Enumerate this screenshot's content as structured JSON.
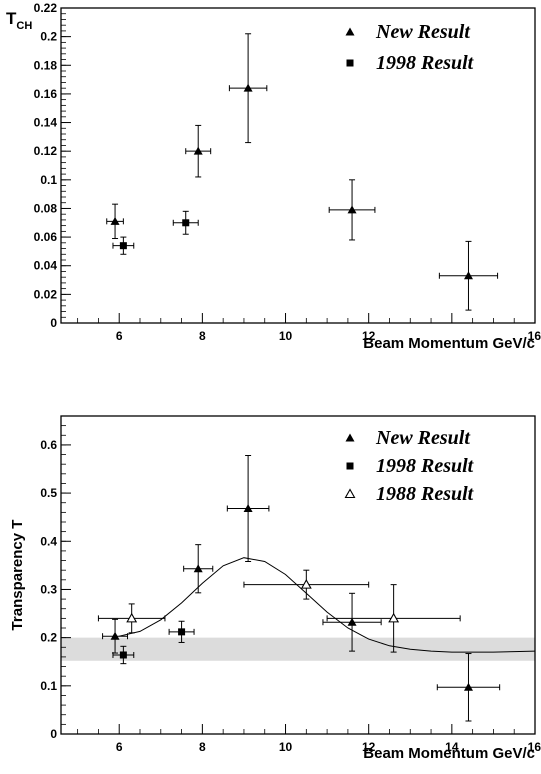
{
  "chart_data": [
    {
      "type": "scatter",
      "title": "",
      "xlabel": "Beam Momentum GeV/c",
      "ylabel_main": "T",
      "ylabel_sub": "CH",
      "xlim": [
        4.6,
        16
      ],
      "ylim": [
        0,
        0.22
      ],
      "x_ticks": [
        "6",
        "8",
        "10",
        "12",
        "16"
      ],
      "y_ticks": [
        "0",
        "0.02",
        "0.04",
        "0.06",
        "0.08",
        "0.1",
        "0.12",
        "0.14",
        "0.16",
        "0.18",
        "0.2",
        "0.22"
      ],
      "legend_placement": "top-right",
      "series": [
        {
          "name": "New Result",
          "marker": "triangle-filled",
          "points": [
            {
              "x": 5.9,
              "y": 0.071,
              "xerr": 0.2,
              "yerr": 0.012
            },
            {
              "x": 7.9,
              "y": 0.12,
              "xerr": 0.3,
              "yerr": 0.018
            },
            {
              "x": 9.1,
              "y": 0.164,
              "xerr": 0.45,
              "yerr": 0.038
            },
            {
              "x": 11.6,
              "y": 0.079,
              "xerr": 0.55,
              "yerr": 0.021
            },
            {
              "x": 14.4,
              "y": 0.033,
              "xerr": 0.7,
              "yerr": 0.024
            }
          ]
        },
        {
          "name": "1998 Result",
          "marker": "square-filled",
          "points": [
            {
              "x": 6.1,
              "y": 0.054,
              "xerr": 0.25,
              "yerr": 0.006
            },
            {
              "x": 7.6,
              "y": 0.07,
              "xerr": 0.3,
              "yerr": 0.008
            }
          ]
        }
      ]
    },
    {
      "type": "scatter",
      "title": "",
      "xlabel": "Beam Momentum GeV/c",
      "ylabel": "Transparency T",
      "xlim": [
        4.6,
        16
      ],
      "ylim": [
        0,
        0.66
      ],
      "x_ticks": [
        "6",
        "8",
        "10",
        "12",
        "14",
        "16"
      ],
      "y_ticks": [
        "0",
        "0.1",
        "0.2",
        "0.3",
        "0.4",
        "0.5",
        "0.6"
      ],
      "legend_placement": "top-right",
      "band": {
        "y_low": 0.152,
        "y_high": 0.2,
        "color": "#dcdcdc"
      },
      "curve": [
        [
          6.0,
          0.203
        ],
        [
          6.5,
          0.213
        ],
        [
          7.0,
          0.237
        ],
        [
          7.5,
          0.272
        ],
        [
          8.0,
          0.313
        ],
        [
          8.5,
          0.349
        ],
        [
          9.0,
          0.366
        ],
        [
          9.5,
          0.358
        ],
        [
          10.0,
          0.331
        ],
        [
          10.5,
          0.292
        ],
        [
          11.0,
          0.253
        ],
        [
          11.5,
          0.22
        ],
        [
          12.0,
          0.197
        ],
        [
          12.5,
          0.183
        ],
        [
          13.0,
          0.176
        ],
        [
          13.5,
          0.172
        ],
        [
          14.0,
          0.17
        ],
        [
          14.5,
          0.17
        ],
        [
          15.0,
          0.17
        ],
        [
          15.5,
          0.171
        ],
        [
          16.0,
          0.172
        ]
      ],
      "series": [
        {
          "name": "New Result",
          "marker": "triangle-filled",
          "points": [
            {
              "x": 5.9,
              "y": 0.203,
              "xerr": 0.3,
              "yerr": 0.035
            },
            {
              "x": 7.9,
              "y": 0.343,
              "xerr": 0.35,
              "yerr": 0.05
            },
            {
              "x": 9.1,
              "y": 0.468,
              "xerr": 0.5,
              "yerr": 0.11
            },
            {
              "x": 11.6,
              "y": 0.232,
              "xerr": 0.7,
              "yerr": 0.06
            },
            {
              "x": 14.4,
              "y": 0.097,
              "xerr": 0.75,
              "yerr": 0.07
            }
          ]
        },
        {
          "name": "1998 Result",
          "marker": "square-filled",
          "points": [
            {
              "x": 6.1,
              "y": 0.164,
              "xerr": 0.25,
              "yerr": 0.018
            },
            {
              "x": 7.5,
              "y": 0.212,
              "xerr": 0.3,
              "yerr": 0.022
            }
          ]
        },
        {
          "name": "1988 Result",
          "marker": "triangle-open",
          "points": [
            {
              "x": 6.3,
              "y": 0.24,
              "xerr": 0.8,
              "yerr": 0.03
            },
            {
              "x": 10.5,
              "y": 0.31,
              "xerr": 1.5,
              "yerr": 0.03
            },
            {
              "x": 12.6,
              "y": 0.24,
              "xerr": 1.6,
              "yerr": 0.07
            }
          ]
        }
      ]
    }
  ]
}
